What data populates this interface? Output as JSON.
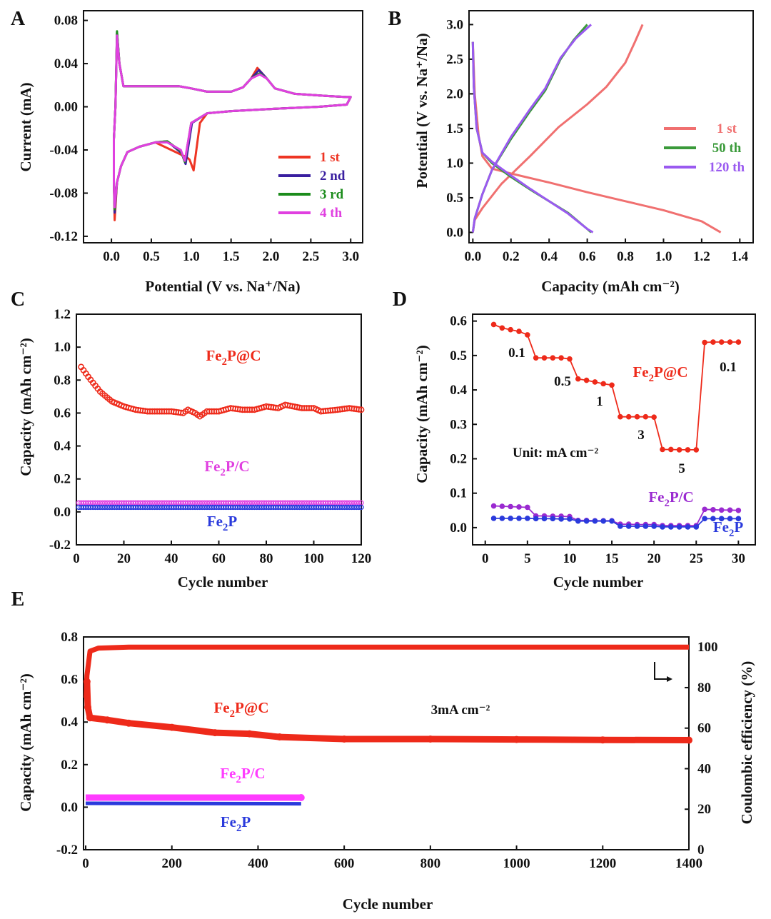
{
  "chart_data": [
    {
      "panel": "A",
      "type": "line",
      "xlabel": "Potential (V vs. Na⁺/Na)",
      "ylabel": "Current (mA)",
      "xlim": [
        -0.35,
        3.15
      ],
      "ylim": [
        -0.126,
        0.089
      ],
      "xticks": [
        0.0,
        0.5,
        1.0,
        1.5,
        2.0,
        2.5,
        3.0
      ],
      "xtick_labels": [
        "0.0",
        "0.5",
        "1.0",
        "1.5",
        "2.0",
        "2.5",
        "3.0"
      ],
      "yticks": [
        0.08,
        0.04,
        0.0,
        -0.04,
        -0.08,
        -0.12
      ],
      "ytick_labels": [
        "0.08",
        "0.04",
        "0.00",
        "-0.04",
        "-0.08",
        "-0.12"
      ],
      "legend_position": "bottom-right",
      "series": [
        {
          "name": "1 st",
          "color": "#ee3524",
          "cathodic_peak": [
            1.03,
            -0.059
          ],
          "shoulder": [
            0.95,
            -0.047
          ],
          "anodic_peak": [
            1.83,
            0.036
          ],
          "low_v_min": -0.105,
          "upper_peak": 0.068
        },
        {
          "name": "2 nd",
          "color": "#3a1fa0",
          "cathodic_peak": [
            0.93,
            -0.053
          ],
          "shoulder": [
            0.7,
            -0.032
          ],
          "anodic_peak": [
            1.85,
            0.034
          ],
          "low_v_min": -0.098,
          "upper_peak": 0.069
        },
        {
          "name": "3 rd",
          "color": "#1c8c1c",
          "cathodic_peak": [
            0.92,
            -0.051
          ],
          "shoulder": [
            0.7,
            -0.032
          ],
          "anodic_peak": [
            1.86,
            0.031
          ],
          "low_v_min": -0.095,
          "upper_peak": 0.07
        },
        {
          "name": "4 th",
          "color": "#e040e0",
          "cathodic_peak": [
            0.92,
            -0.05
          ],
          "shoulder": [
            0.7,
            -0.033
          ],
          "anodic_peak": [
            1.86,
            0.03
          ],
          "low_v_min": -0.093,
          "upper_peak": 0.066
        }
      ]
    },
    {
      "panel": "B",
      "type": "line",
      "xlabel": "Capacity (mAh cm⁻²)",
      "ylabel": "Potential (V vs. Na⁺/Na)",
      "xlim": [
        -0.02,
        1.47
      ],
      "ylim": [
        -0.15,
        3.2
      ],
      "xticks": [
        0.0,
        0.2,
        0.4,
        0.6,
        0.8,
        1.0,
        1.2,
        1.4
      ],
      "xtick_labels": [
        "0.0",
        "0.2",
        "0.4",
        "0.6",
        "0.8",
        "1.0",
        "1.2",
        "1.4"
      ],
      "yticks": [
        0.0,
        0.5,
        1.0,
        1.5,
        2.0,
        2.5,
        3.0
      ],
      "ytick_labels": [
        "0.0",
        "0.5",
        "1.0",
        "1.5",
        "2.0",
        "2.5",
        "3.0"
      ],
      "legend_position": "middle-right",
      "series": [
        {
          "name": "1 st",
          "color": "#f07070",
          "discharge": [
            [
              0,
              2.75
            ],
            [
              0.01,
              2.0
            ],
            [
              0.03,
              1.4
            ],
            [
              0.05,
              1.1
            ],
            [
              0.1,
              0.92
            ],
            [
              0.2,
              0.85
            ],
            [
              0.4,
              0.72
            ],
            [
              0.6,
              0.58
            ],
            [
              0.8,
              0.45
            ],
            [
              1.0,
              0.32
            ],
            [
              1.2,
              0.16
            ],
            [
              1.3,
              0.0
            ]
          ],
          "charge": [
            [
              0,
              0.0
            ],
            [
              0.01,
              0.18
            ],
            [
              0.05,
              0.35
            ],
            [
              0.15,
              0.7
            ],
            [
              0.3,
              1.1
            ],
            [
              0.45,
              1.52
            ],
            [
              0.6,
              1.85
            ],
            [
              0.7,
              2.1
            ],
            [
              0.8,
              2.45
            ],
            [
              0.85,
              2.75
            ],
            [
              0.89,
              3.0
            ]
          ]
        },
        {
          "name": "50 th",
          "color": "#3a9a3a",
          "discharge": [
            [
              0,
              2.75
            ],
            [
              0.005,
              2.1
            ],
            [
              0.02,
              1.5
            ],
            [
              0.05,
              1.15
            ],
            [
              0.1,
              1.0
            ],
            [
              0.2,
              0.8
            ],
            [
              0.3,
              0.62
            ],
            [
              0.4,
              0.45
            ],
            [
              0.5,
              0.28
            ],
            [
              0.6,
              0.05
            ],
            [
              0.62,
              0.0
            ]
          ],
          "charge": [
            [
              0,
              0.0
            ],
            [
              0.01,
              0.2
            ],
            [
              0.05,
              0.55
            ],
            [
              0.1,
              0.9
            ],
            [
              0.2,
              1.35
            ],
            [
              0.3,
              1.75
            ],
            [
              0.38,
              2.05
            ],
            [
              0.46,
              2.5
            ],
            [
              0.53,
              2.78
            ],
            [
              0.6,
              3.0
            ]
          ]
        },
        {
          "name": "120 th",
          "color": "#9a5af0",
          "discharge": [
            [
              0,
              2.75
            ],
            [
              0.005,
              2.1
            ],
            [
              0.02,
              1.5
            ],
            [
              0.05,
              1.15
            ],
            [
              0.1,
              1.02
            ],
            [
              0.2,
              0.82
            ],
            [
              0.3,
              0.63
            ],
            [
              0.4,
              0.45
            ],
            [
              0.5,
              0.27
            ],
            [
              0.6,
              0.05
            ],
            [
              0.63,
              0.0
            ]
          ],
          "charge": [
            [
              0,
              0.0
            ],
            [
              0.01,
              0.2
            ],
            [
              0.05,
              0.55
            ],
            [
              0.1,
              0.9
            ],
            [
              0.2,
              1.38
            ],
            [
              0.3,
              1.78
            ],
            [
              0.38,
              2.08
            ],
            [
              0.46,
              2.52
            ],
            [
              0.54,
              2.8
            ],
            [
              0.62,
              3.0
            ]
          ]
        }
      ]
    },
    {
      "panel": "C",
      "type": "scatter",
      "xlabel": "Cycle number",
      "ylabel": "Capacity (mAh cm⁻²)",
      "xlim": [
        0,
        120
      ],
      "ylim": [
        -0.2,
        1.2
      ],
      "xticks": [
        0,
        20,
        40,
        60,
        80,
        100,
        120
      ],
      "xtick_labels": [
        "0",
        "20",
        "40",
        "60",
        "80",
        "100",
        "120"
      ],
      "yticks": [
        -0.2,
        0.0,
        0.2,
        0.4,
        0.6,
        0.8,
        1.0,
        1.2
      ],
      "ytick_labels": [
        "-0.2",
        "0.0",
        "0.2",
        "0.4",
        "0.6",
        "0.8",
        "1.0",
        "1.2"
      ],
      "series": [
        {
          "name": "Fe₂P@C",
          "color": "#ee2a1a",
          "points": [
            [
              2,
              0.88
            ],
            [
              5,
              0.82
            ],
            [
              10,
              0.73
            ],
            [
              15,
              0.67
            ],
            [
              20,
              0.64
            ],
            [
              25,
              0.62
            ],
            [
              30,
              0.61
            ],
            [
              40,
              0.61
            ],
            [
              45,
              0.6
            ],
            [
              47,
              0.62
            ],
            [
              50,
              0.6
            ],
            [
              52,
              0.58
            ],
            [
              55,
              0.61
            ],
            [
              60,
              0.61
            ],
            [
              65,
              0.63
            ],
            [
              70,
              0.62
            ],
            [
              75,
              0.62
            ],
            [
              80,
              0.64
            ],
            [
              85,
              0.63
            ],
            [
              88,
              0.65
            ],
            [
              95,
              0.63
            ],
            [
              100,
              0.63
            ],
            [
              103,
              0.61
            ],
            [
              110,
              0.62
            ],
            [
              115,
              0.63
            ],
            [
              120,
              0.62
            ]
          ]
        },
        {
          "name": "Fe₂P/C",
          "color": "#e040e0",
          "constant": 0.055
        },
        {
          "name": "Fe₂P",
          "color": "#2a3adc",
          "constant": 0.028
        }
      ]
    },
    {
      "panel": "D",
      "type": "scatter",
      "xlabel": "Cycle number",
      "ylabel": "Capacity (mAh cm⁻²)",
      "xlim": [
        -1.5,
        32
      ],
      "ylim": [
        -0.05,
        0.62
      ],
      "xticks": [
        0,
        5,
        10,
        15,
        20,
        25,
        30
      ],
      "xtick_labels": [
        "0",
        "5",
        "10",
        "15",
        "20",
        "25",
        "30"
      ],
      "yticks": [
        0.0,
        0.1,
        0.2,
        0.3,
        0.4,
        0.5,
        0.6
      ],
      "ytick_labels": [
        "0.0",
        "0.1",
        "0.2",
        "0.3",
        "0.4",
        "0.5",
        "0.6"
      ],
      "unit_note": "Unit: mA cm⁻²",
      "rate_labels": [
        "0.1",
        "0.5",
        "1",
        "3",
        "5",
        "0.1"
      ],
      "series": [
        {
          "name": "Fe₂P@C",
          "color": "#ee2a1a",
          "values": [
            0.59,
            0.58,
            0.575,
            0.57,
            0.56,
            0.493,
            0.493,
            0.493,
            0.493,
            0.49,
            0.432,
            0.428,
            0.423,
            0.418,
            0.414,
            0.322,
            0.322,
            0.322,
            0.322,
            0.321,
            0.227,
            0.227,
            0.226,
            0.226,
            0.226,
            0.538,
            0.539,
            0.539,
            0.539,
            0.539
          ]
        },
        {
          "name": "Fe₂P/C",
          "color": "#9a2ad0",
          "values": [
            0.063,
            0.062,
            0.061,
            0.06,
            0.059,
            0.034,
            0.034,
            0.033,
            0.033,
            0.032,
            0.021,
            0.021,
            0.02,
            0.02,
            0.02,
            0.01,
            0.01,
            0.009,
            0.009,
            0.009,
            0.006,
            0.006,
            0.006,
            0.006,
            0.006,
            0.053,
            0.052,
            0.051,
            0.051,
            0.05
          ]
        },
        {
          "name": "Fe₂P",
          "color": "#2a3adc",
          "values": [
            0.027,
            0.027,
            0.027,
            0.027,
            0.027,
            0.026,
            0.026,
            0.026,
            0.025,
            0.025,
            0.019,
            0.019,
            0.019,
            0.019,
            0.019,
            0.004,
            0.004,
            0.004,
            0.004,
            0.004,
            0.002,
            0.002,
            0.002,
            0.002,
            0.002,
            0.026,
            0.026,
            0.026,
            0.026,
            0.026
          ]
        }
      ]
    },
    {
      "panel": "E",
      "type": "scatter",
      "xlabel": "Cycle number",
      "ylabel": "Capacity (mAh cm⁻²)",
      "y2label": "Coulombic efficiency (%)",
      "xlim": [
        -5,
        1400
      ],
      "ylim": [
        -0.2,
        0.8
      ],
      "y2lim": [
        0,
        105
      ],
      "xticks": [
        0,
        200,
        400,
        600,
        800,
        1000,
        1200,
        1400
      ],
      "xtick_labels": [
        "0",
        "200",
        "400",
        "600",
        "800",
        "1000",
        "1200",
        "1400"
      ],
      "yticks": [
        -0.2,
        0.0,
        0.2,
        0.4,
        0.6,
        0.8
      ],
      "ytick_labels": [
        "-0.2",
        "0.0",
        "0.2",
        "0.4",
        "0.6",
        "0.8"
      ],
      "y2ticks": [
        0,
        20,
        40,
        60,
        80,
        100
      ],
      "y2tick_labels": [
        "0",
        "20",
        "40",
        "60",
        "80",
        "100"
      ],
      "rate_note": "3mA cm⁻²",
      "series": [
        {
          "name": "Fe₂P@C",
          "color": "#ee2a1a",
          "points": [
            [
              3,
              0.59
            ],
            [
              5,
              0.47
            ],
            [
              10,
              0.42
            ],
            [
              50,
              0.41
            ],
            [
              100,
              0.395
            ],
            [
              200,
              0.375
            ],
            [
              300,
              0.35
            ],
            [
              380,
              0.345
            ],
            [
              450,
              0.33
            ],
            [
              600,
              0.32
            ],
            [
              800,
              0.32
            ],
            [
              1000,
              0.318
            ],
            [
              1200,
              0.316
            ],
            [
              1400,
              0.315
            ]
          ]
        },
        {
          "name": "Coulombic efficiency",
          "color": "#ee2a1a",
          "axis": "right",
          "points": [
            [
              1,
              75
            ],
            [
              3,
              86
            ],
            [
              10,
              98
            ],
            [
              30,
              99.5
            ],
            [
              100,
              100
            ],
            [
              1400,
              100
            ]
          ]
        },
        {
          "name": "Fe₂P/C",
          "color": "#ff3cff",
          "points": [
            [
              0,
              0.045
            ],
            [
              500,
              0.045
            ]
          ]
        },
        {
          "name": "Fe₂P",
          "color": "#2a3adc",
          "points": [
            [
              0,
              0.018
            ],
            [
              500,
              0.016
            ]
          ]
        }
      ]
    }
  ]
}
